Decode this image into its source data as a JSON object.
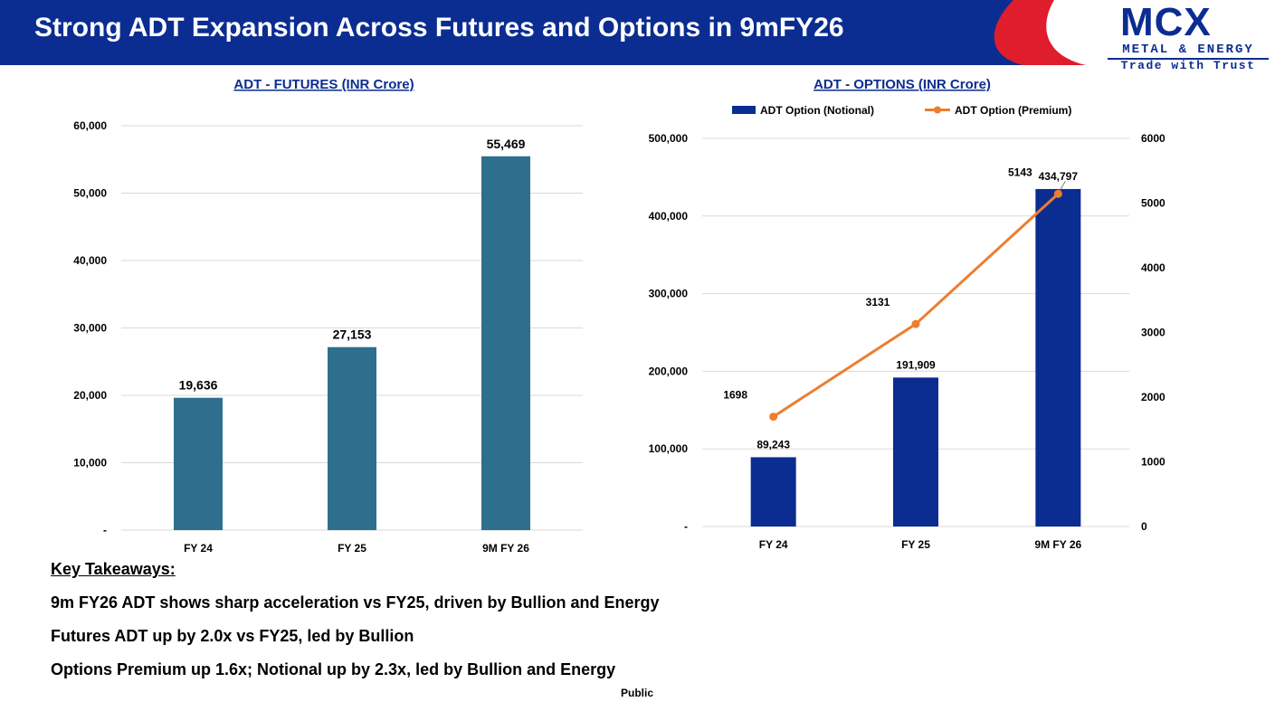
{
  "header": {
    "title": "Strong ADT Expansion Across Futures and Options in 9mFY26",
    "band_color": "#0b2d91",
    "accent_color": "#e01d2d"
  },
  "logo": {
    "word": "MCX",
    "subtitle": "METAL & ENERGY",
    "tagline": "Trade with Trust"
  },
  "chart_data": [
    {
      "type": "bar",
      "title": "ADT - FUTURES (INR Crore)",
      "categories": [
        "FY 24",
        "FY 25",
        "9M FY 26"
      ],
      "values": [
        19636,
        27153,
        55469
      ],
      "value_labels": [
        "19,636",
        "27,153",
        "55,469"
      ],
      "yticks": [
        "-",
        "10,000",
        "20,000",
        "30,000",
        "40,000",
        "50,000",
        "60,000"
      ],
      "ylim": [
        0,
        60000
      ],
      "grid": true,
      "bar_color": "#2e6f8e",
      "xlabel": "",
      "ylabel": ""
    },
    {
      "type": "bar",
      "title": "ADT - OPTIONS (INR Crore)",
      "categories": [
        "FY 24",
        "FY 25",
        "9M FY 26"
      ],
      "legend_position": "top",
      "series": [
        {
          "name": "ADT Option (Notional)",
          "kind": "bar",
          "axis": "left",
          "values": [
            89243,
            191909,
            434797
          ],
          "value_labels": [
            "89,243",
            "191,909",
            "434,797"
          ],
          "color": "#0b2d91"
        },
        {
          "name": "ADT Option (Premium)",
          "kind": "line",
          "axis": "right",
          "values": [
            1698,
            3131,
            5143
          ],
          "value_labels": [
            "1698",
            "3131",
            "5143"
          ],
          "color": "#ed7d31"
        }
      ],
      "ylim_left": [
        0,
        500000
      ],
      "ylim_right": [
        0,
        6000
      ],
      "yticks_left": [
        "-",
        "100,000",
        "200,000",
        "300,000",
        "400,000",
        "500,000"
      ],
      "yticks_right": [
        "0",
        "1000",
        "2000",
        "3000",
        "4000",
        "5000",
        "6000"
      ],
      "grid": true
    }
  ],
  "takeaways": {
    "heading": "Key Takeaways:",
    "items": [
      "9m FY26 ADT shows sharp acceleration vs FY25, driven by Bullion and Energy",
      "Futures ADT up by 2.0x vs FY25, led by Bullion",
      "Options Premium up 1.6x; Notional up by 2.3x, led by Bullion and Energy"
    ]
  },
  "footer": {
    "label": "Public"
  }
}
